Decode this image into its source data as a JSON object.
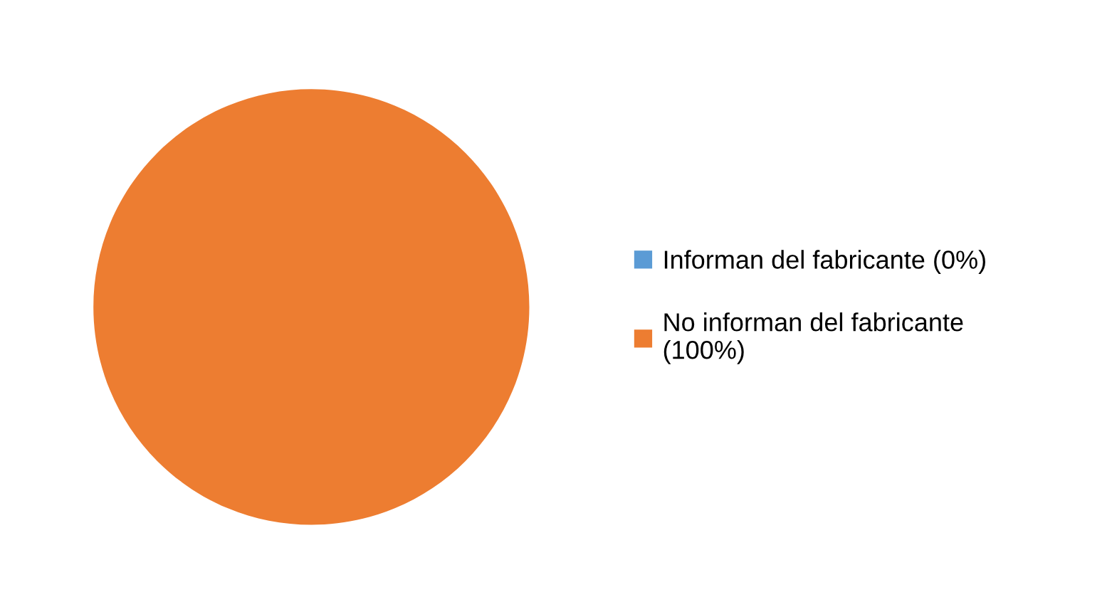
{
  "chart_data": {
    "type": "pie",
    "categories": [
      "Informan del fabricante (0%)",
      "No informan del fabricante\n(100%)"
    ],
    "values": [
      0,
      100
    ],
    "colors": [
      "#5b9bd5",
      "#ed7d31"
    ],
    "legend": "right"
  }
}
